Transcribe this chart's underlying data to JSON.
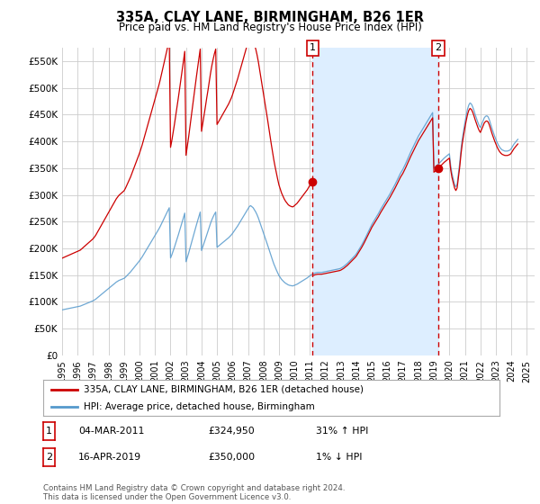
{
  "title": "335A, CLAY LANE, BIRMINGHAM, B26 1ER",
  "subtitle": "Price paid vs. HM Land Registry's House Price Index (HPI)",
  "ytick_values": [
    0,
    50000,
    100000,
    150000,
    200000,
    250000,
    300000,
    350000,
    400000,
    450000,
    500000,
    550000
  ],
  "ylim": [
    0,
    575000
  ],
  "legend_label_red": "335A, CLAY LANE, BIRMINGHAM, B26 1ER (detached house)",
  "legend_label_blue": "HPI: Average price, detached house, Birmingham",
  "annotation1_label": "1",
  "annotation1_date": "04-MAR-2011",
  "annotation1_price": "£324,950",
  "annotation1_pct": "31% ↑ HPI",
  "annotation2_label": "2",
  "annotation2_date": "16-APR-2019",
  "annotation2_price": "£350,000",
  "annotation2_pct": "1% ↓ HPI",
  "footer": "Contains HM Land Registry data © Crown copyright and database right 2024.\nThis data is licensed under the Open Government Licence v3.0.",
  "red_color": "#cc0000",
  "blue_color": "#5599cc",
  "shade_color": "#ddeeff",
  "vline_color": "#cc0000",
  "bg_color": "#ffffff",
  "grid_color": "#cccccc",
  "point1_x": 2011.17,
  "point1_y": 324950,
  "point2_x": 2019.29,
  "point2_y": 350000,
  "xmin": 1995,
  "xmax": 2025.5,
  "xticks": [
    1995,
    1996,
    1997,
    1998,
    1999,
    2000,
    2001,
    2002,
    2003,
    2004,
    2005,
    2006,
    2007,
    2008,
    2009,
    2010,
    2011,
    2012,
    2013,
    2014,
    2015,
    2016,
    2017,
    2018,
    2019,
    2020,
    2021,
    2022,
    2023,
    2024,
    2025
  ],
  "hpi_x": [
    1995.0,
    1995.083,
    1995.167,
    1995.25,
    1995.333,
    1995.417,
    1995.5,
    1995.583,
    1995.667,
    1995.75,
    1995.833,
    1995.917,
    1996.0,
    1996.083,
    1996.167,
    1996.25,
    1996.333,
    1996.417,
    1996.5,
    1996.583,
    1996.667,
    1996.75,
    1996.833,
    1996.917,
    1997.0,
    1997.083,
    1997.167,
    1997.25,
    1997.333,
    1997.417,
    1997.5,
    1997.583,
    1997.667,
    1997.75,
    1997.833,
    1997.917,
    1998.0,
    1998.083,
    1998.167,
    1998.25,
    1998.333,
    1998.417,
    1998.5,
    1998.583,
    1998.667,
    1998.75,
    1998.833,
    1998.917,
    1999.0,
    1999.083,
    1999.167,
    1999.25,
    1999.333,
    1999.417,
    1999.5,
    1999.583,
    1999.667,
    1999.75,
    1999.833,
    1999.917,
    2000.0,
    2000.083,
    2000.167,
    2000.25,
    2000.333,
    2000.417,
    2000.5,
    2000.583,
    2000.667,
    2000.75,
    2000.833,
    2000.917,
    2001.0,
    2001.083,
    2001.167,
    2001.25,
    2001.333,
    2001.417,
    2001.5,
    2001.583,
    2001.667,
    2001.75,
    2001.833,
    2001.917,
    2002.0,
    2002.083,
    2002.167,
    2002.25,
    2002.333,
    2002.417,
    2002.5,
    2002.583,
    2002.667,
    2002.75,
    2002.833,
    2002.917,
    2003.0,
    2003.083,
    2003.167,
    2003.25,
    2003.333,
    2003.417,
    2003.5,
    2003.583,
    2003.667,
    2003.75,
    2003.833,
    2003.917,
    2004.0,
    2004.083,
    2004.167,
    2004.25,
    2004.333,
    2004.417,
    2004.5,
    2004.583,
    2004.667,
    2004.75,
    2004.833,
    2004.917,
    2005.0,
    2005.083,
    2005.167,
    2005.25,
    2005.333,
    2005.417,
    2005.5,
    2005.583,
    2005.667,
    2005.75,
    2005.833,
    2005.917,
    2006.0,
    2006.083,
    2006.167,
    2006.25,
    2006.333,
    2006.417,
    2006.5,
    2006.583,
    2006.667,
    2006.75,
    2006.833,
    2006.917,
    2007.0,
    2007.083,
    2007.167,
    2007.25,
    2007.333,
    2007.417,
    2007.5,
    2007.583,
    2007.667,
    2007.75,
    2007.833,
    2007.917,
    2008.0,
    2008.083,
    2008.167,
    2008.25,
    2008.333,
    2008.417,
    2008.5,
    2008.583,
    2008.667,
    2008.75,
    2008.833,
    2008.917,
    2009.0,
    2009.083,
    2009.167,
    2009.25,
    2009.333,
    2009.417,
    2009.5,
    2009.583,
    2009.667,
    2009.75,
    2009.833,
    2009.917,
    2010.0,
    2010.083,
    2010.167,
    2010.25,
    2010.333,
    2010.417,
    2010.5,
    2010.583,
    2010.667,
    2010.75,
    2010.833,
    2010.917,
    2011.0,
    2011.083,
    2011.167,
    2011.25,
    2011.333,
    2011.417,
    2011.5,
    2011.583,
    2011.667,
    2011.75,
    2011.833,
    2011.917,
    2012.0,
    2012.083,
    2012.167,
    2012.25,
    2012.333,
    2012.417,
    2012.5,
    2012.583,
    2012.667,
    2012.75,
    2012.833,
    2012.917,
    2013.0,
    2013.083,
    2013.167,
    2013.25,
    2013.333,
    2013.417,
    2013.5,
    2013.583,
    2013.667,
    2013.75,
    2013.833,
    2013.917,
    2014.0,
    2014.083,
    2014.167,
    2014.25,
    2014.333,
    2014.417,
    2014.5,
    2014.583,
    2014.667,
    2014.75,
    2014.833,
    2014.917,
    2015.0,
    2015.083,
    2015.167,
    2015.25,
    2015.333,
    2015.417,
    2015.5,
    2015.583,
    2015.667,
    2015.75,
    2015.833,
    2015.917,
    2016.0,
    2016.083,
    2016.167,
    2016.25,
    2016.333,
    2016.417,
    2016.5,
    2016.583,
    2016.667,
    2016.75,
    2016.833,
    2016.917,
    2017.0,
    2017.083,
    2017.167,
    2017.25,
    2017.333,
    2017.417,
    2017.5,
    2017.583,
    2017.667,
    2017.75,
    2017.833,
    2017.917,
    2018.0,
    2018.083,
    2018.167,
    2018.25,
    2018.333,
    2018.417,
    2018.5,
    2018.583,
    2018.667,
    2018.75,
    2018.833,
    2018.917,
    2019.0,
    2019.083,
    2019.167,
    2019.25,
    2019.333,
    2019.417,
    2019.5,
    2019.583,
    2019.667,
    2019.75,
    2019.833,
    2019.917,
    2020.0,
    2020.083,
    2020.167,
    2020.25,
    2020.333,
    2020.417,
    2020.5,
    2020.583,
    2020.667,
    2020.75,
    2020.833,
    2020.917,
    2021.0,
    2021.083,
    2021.167,
    2021.25,
    2021.333,
    2021.417,
    2021.5,
    2021.583,
    2021.667,
    2021.75,
    2021.833,
    2021.917,
    2022.0,
    2022.083,
    2022.167,
    2022.25,
    2022.333,
    2022.417,
    2022.5,
    2022.583,
    2022.667,
    2022.75,
    2022.833,
    2022.917,
    2023.0,
    2023.083,
    2023.167,
    2023.25,
    2023.333,
    2023.417,
    2023.5,
    2023.583,
    2023.667,
    2023.75,
    2023.833,
    2023.917,
    2024.0,
    2024.083,
    2024.167,
    2024.25,
    2024.333,
    2024.417
  ],
  "hpi_y": [
    85000,
    85500,
    86000,
    86500,
    87000,
    87500,
    88000,
    88500,
    89000,
    89500,
    90000,
    90500,
    91000,
    91500,
    92000,
    93000,
    94000,
    95000,
    96000,
    97000,
    98000,
    99000,
    100000,
    101000,
    102000,
    103500,
    105000,
    107000,
    109000,
    111000,
    113000,
    115000,
    117000,
    119000,
    121000,
    123000,
    125000,
    127000,
    129000,
    131000,
    133000,
    135000,
    137000,
    138500,
    140000,
    141000,
    142000,
    143000,
    144000,
    146000,
    148500,
    151000,
    153500,
    156000,
    159000,
    162000,
    165000,
    168000,
    171000,
    174000,
    177000,
    180500,
    184000,
    188000,
    192000,
    196000,
    200000,
    204000,
    208000,
    212000,
    216000,
    220000,
    224000,
    228000,
    232000,
    236500,
    241000,
    246000,
    251000,
    256000,
    261000,
    266000,
    271000,
    276000,
    182000,
    188000,
    195000,
    202000,
    209500,
    217000,
    225000,
    233000,
    241000,
    249000,
    257500,
    266000,
    175000,
    183000,
    191000,
    200000,
    208500,
    217000,
    226000,
    235000,
    243500,
    252000,
    260000,
    268000,
    196000,
    203000,
    210000,
    217500,
    225000,
    232000,
    239500,
    247000,
    253500,
    259000,
    264000,
    268000,
    202000,
    204000,
    206000,
    208000,
    210000,
    212000,
    214000,
    216000,
    218000,
    220000,
    222500,
    225000,
    228000,
    231500,
    235000,
    238500,
    242000,
    246000,
    250000,
    254000,
    258000,
    262000,
    266000,
    270000,
    274000,
    278000,
    280000,
    278000,
    276000,
    272000,
    268000,
    263000,
    257000,
    250000,
    243000,
    236000,
    229000,
    222000,
    215000,
    207500,
    200000,
    192500,
    185000,
    178000,
    171000,
    165000,
    159500,
    154000,
    149000,
    145500,
    142000,
    139500,
    137000,
    135000,
    133500,
    132000,
    131000,
    130500,
    130000,
    130000,
    131000,
    132000,
    133000,
    134500,
    136000,
    137500,
    139000,
    140500,
    142000,
    143500,
    145000,
    147000,
    149000,
    150500,
    152000,
    153000,
    154000,
    154500,
    155000,
    155000,
    155000,
    155000,
    155500,
    156000,
    156500,
    157000,
    157500,
    158000,
    158500,
    159000,
    159500,
    160000,
    160500,
    161000,
    161500,
    162000,
    163000,
    164500,
    166000,
    168000,
    170000,
    172000,
    174500,
    177000,
    179500,
    182000,
    184500,
    187000,
    190000,
    194000,
    198000,
    202000,
    206000,
    210500,
    215000,
    220000,
    225000,
    230000,
    235000,
    240000,
    245000,
    249000,
    253000,
    257000,
    261000,
    265000,
    269500,
    274000,
    278000,
    282000,
    286000,
    290000,
    294000,
    298000,
    302000,
    306500,
    311000,
    315500,
    320000,
    325000,
    330000,
    335000,
    340000,
    344000,
    348000,
    353000,
    358000,
    363500,
    369000,
    374500,
    380000,
    385000,
    390000,
    395000,
    400000,
    405000,
    410000,
    414000,
    418000,
    422000,
    426000,
    430000,
    434000,
    438000,
    442000,
    446000,
    450000,
    454000,
    350000,
    352000,
    354000,
    356500,
    359000,
    361500,
    364000,
    366500,
    369000,
    371000,
    373000,
    375000,
    377000,
    355000,
    340000,
    330000,
    320000,
    315000,
    320000,
    340000,
    360000,
    385000,
    405000,
    420000,
    435000,
    448000,
    460000,
    468000,
    472000,
    470000,
    465000,
    458000,
    450000,
    443000,
    436000,
    430000,
    426000,
    432000,
    438000,
    444000,
    447000,
    448000,
    446000,
    440000,
    432000,
    424000,
    417000,
    410000,
    404000,
    398000,
    393000,
    389000,
    386000,
    384000,
    383000,
    382000,
    382000,
    382000,
    383000,
    384000,
    387000,
    391000,
    395000,
    398000,
    401000,
    404000
  ]
}
